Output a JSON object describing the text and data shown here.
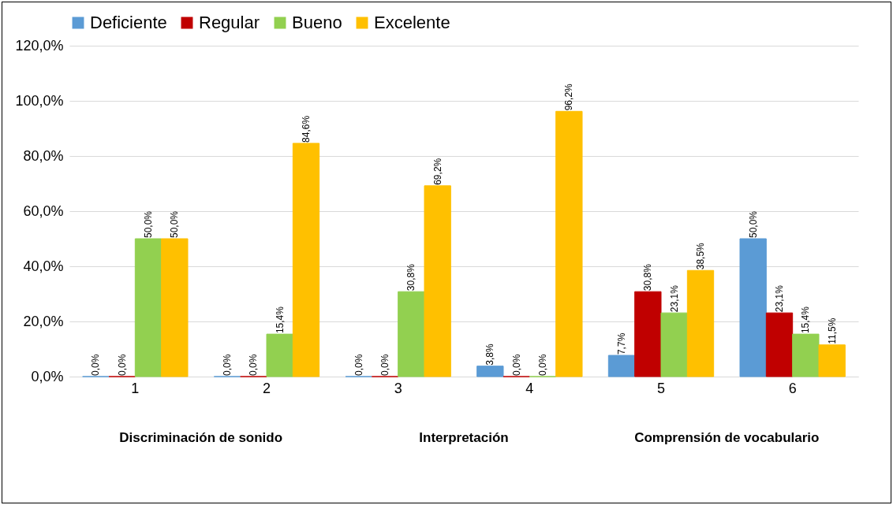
{
  "chart_data": {
    "type": "bar",
    "categories": [
      "1",
      "2",
      "3",
      "4",
      "5",
      "6"
    ],
    "series": [
      {
        "name": "Deficiente",
        "color": "#5b9bd5",
        "values": [
          0.0,
          0.0,
          0.0,
          3.8,
          7.7,
          50.0
        ],
        "value_labels": [
          "0,0%",
          "0,0%",
          "0,0%",
          "3,8%",
          "7,7%",
          "50,0%"
        ]
      },
      {
        "name": "Regular",
        "color": "#c00000",
        "values": [
          0.0,
          0.0,
          0.0,
          0.0,
          30.8,
          23.1
        ],
        "value_labels": [
          "0,0%",
          "0,0%",
          "0,0%",
          "0,0%",
          "30,8%",
          "23,1%"
        ]
      },
      {
        "name": "Bueno",
        "color": "#92d050",
        "values": [
          50.0,
          15.4,
          30.8,
          0.0,
          23.1,
          15.4
        ],
        "value_labels": [
          "50,0%",
          "15,4%",
          "30,8%",
          "0,0%",
          "23,1%",
          "15,4%"
        ]
      },
      {
        "name": "Excelente",
        "color": "#ffc000",
        "values": [
          50.0,
          84.6,
          69.2,
          96.2,
          38.5,
          11.5
        ],
        "value_labels": [
          "50,0%",
          "84,6%",
          "69,2%",
          "96,2%",
          "38,5%",
          "11,5%"
        ]
      }
    ],
    "ylim": [
      0,
      120
    ],
    "yticks": [
      {
        "value": 0,
        "label": "0,0%"
      },
      {
        "value": 20,
        "label": "20,0%"
      },
      {
        "value": 40,
        "label": "40,0%"
      },
      {
        "value": 60,
        "label": "60,0%"
      },
      {
        "value": 80,
        "label": "80,0%"
      },
      {
        "value": 100,
        "label": "100,0%"
      },
      {
        "value": 120,
        "label": "120,0%"
      }
    ],
    "grid": "y",
    "legend": "top",
    "annotations": [
      "Discriminación de sonido",
      "Interpretación",
      "Comprensión de vocabulario"
    ]
  }
}
